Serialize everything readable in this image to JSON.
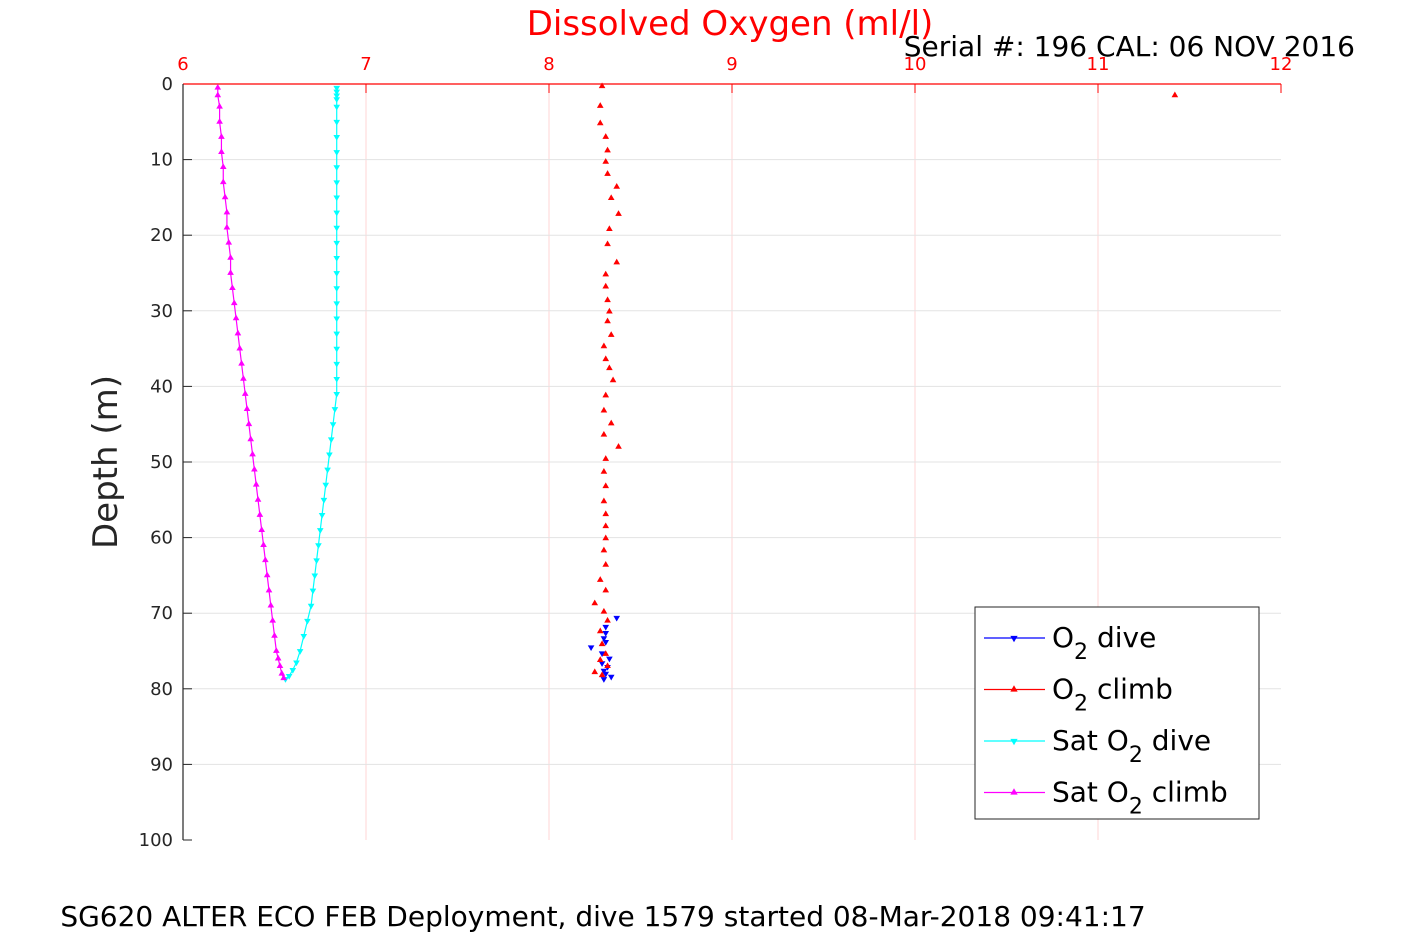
{
  "chart_data": {
    "type": "scatter",
    "title": "Dissolved Oxygen (ml/l)",
    "subtitle": "Serial #: 196  CAL: 06 NOV 2016",
    "xlabel": "",
    "ylabel": "Depth (m)",
    "caption": "SG620 ALTER ECO FEB Deployment, dive 1579 started 08-Mar-2018 09:41:17",
    "xlim": [
      6,
      12
    ],
    "ylim": [
      0,
      100
    ],
    "y_reversed": true,
    "x_axis_location": "top",
    "grid": true,
    "legend_position": "bottom-right",
    "x_ticks": [
      "6",
      "7",
      "8",
      "9",
      "10",
      "11",
      "12"
    ],
    "y_ticks": [
      "0",
      "10",
      "20",
      "30",
      "40",
      "50",
      "60",
      "70",
      "80",
      "90",
      "100"
    ],
    "series": [
      {
        "name": "O2 dive",
        "legend": {
          "pre": "O",
          "sub": "2",
          "post": " dive"
        },
        "color": "#0000ff",
        "marker": "triangle-down",
        "points": [
          [
            8.37,
            70.6
          ],
          [
            8.31,
            71.8
          ],
          [
            8.31,
            72.6
          ],
          [
            8.3,
            73.3
          ],
          [
            8.31,
            73.8
          ],
          [
            8.23,
            74.5
          ],
          [
            8.29,
            75.3
          ],
          [
            8.33,
            76.0
          ],
          [
            8.29,
            76.6
          ],
          [
            8.32,
            77.1
          ],
          [
            8.3,
            77.6
          ],
          [
            8.31,
            78.0
          ],
          [
            8.34,
            78.4
          ],
          [
            8.3,
            78.7
          ]
        ]
      },
      {
        "name": "O2 climb",
        "legend": {
          "pre": "O",
          "sub": "2",
          "post": " climb"
        },
        "color": "#ff0000",
        "marker": "triangle-up",
        "points": [
          [
            11.42,
            1.5
          ],
          [
            8.29,
            0.3
          ],
          [
            8.28,
            2.9
          ],
          [
            8.28,
            5.2
          ],
          [
            8.31,
            7.0
          ],
          [
            8.32,
            8.8
          ],
          [
            8.31,
            10.3
          ],
          [
            8.32,
            11.9
          ],
          [
            8.37,
            13.6
          ],
          [
            8.34,
            15.1
          ],
          [
            8.38,
            17.2
          ],
          [
            8.33,
            19.2
          ],
          [
            8.32,
            21.2
          ],
          [
            8.37,
            23.6
          ],
          [
            8.31,
            25.2
          ],
          [
            8.31,
            26.8
          ],
          [
            8.32,
            28.6
          ],
          [
            8.33,
            30.1
          ],
          [
            8.32,
            31.4
          ],
          [
            8.34,
            33.2
          ],
          [
            8.3,
            34.7
          ],
          [
            8.31,
            36.4
          ],
          [
            8.33,
            37.6
          ],
          [
            8.35,
            39.2
          ],
          [
            8.31,
            41.2
          ],
          [
            8.3,
            43.2
          ],
          [
            8.34,
            44.9
          ],
          [
            8.3,
            46.4
          ],
          [
            8.38,
            48.0
          ],
          [
            8.31,
            49.6
          ],
          [
            8.3,
            51.3
          ],
          [
            8.31,
            53.2
          ],
          [
            8.3,
            55.2
          ],
          [
            8.31,
            56.9
          ],
          [
            8.31,
            58.5
          ],
          [
            8.31,
            60.1
          ],
          [
            8.3,
            61.7
          ],
          [
            8.31,
            63.6
          ],
          [
            8.28,
            65.6
          ],
          [
            8.31,
            67.0
          ],
          [
            8.25,
            68.7
          ],
          [
            8.3,
            69.8
          ],
          [
            8.32,
            71.0
          ],
          [
            8.28,
            72.4
          ],
          [
            8.29,
            74.1
          ],
          [
            8.31,
            75.4
          ],
          [
            8.28,
            76.2
          ],
          [
            8.32,
            77.0
          ],
          [
            8.25,
            77.8
          ],
          [
            8.29,
            78.2
          ]
        ]
      },
      {
        "name": "Sat O2 dive",
        "legend": {
          "pre": "Sat O",
          "sub": "2",
          "post": " dive"
        },
        "color": "#00ffff",
        "marker": "triangle-down",
        "line": true,
        "points": [
          [
            6.84,
            0.5
          ],
          [
            6.84,
            1.0
          ],
          [
            6.84,
            1.5
          ],
          [
            6.84,
            2.0
          ],
          [
            6.84,
            3.0
          ],
          [
            6.84,
            5.0
          ],
          [
            6.84,
            7.0
          ],
          [
            6.84,
            9.0
          ],
          [
            6.84,
            11.0
          ],
          [
            6.84,
            13.0
          ],
          [
            6.84,
            15.0
          ],
          [
            6.84,
            17.0
          ],
          [
            6.84,
            19.0
          ],
          [
            6.84,
            21.0
          ],
          [
            6.84,
            23.0
          ],
          [
            6.84,
            25.0
          ],
          [
            6.84,
            27.0
          ],
          [
            6.84,
            29.0
          ],
          [
            6.84,
            31.0
          ],
          [
            6.84,
            33.0
          ],
          [
            6.84,
            35.0
          ],
          [
            6.84,
            37.0
          ],
          [
            6.84,
            39.0
          ],
          [
            6.84,
            41.0
          ],
          [
            6.83,
            43.0
          ],
          [
            6.82,
            45.0
          ],
          [
            6.81,
            47.0
          ],
          [
            6.8,
            49.0
          ],
          [
            6.79,
            51.0
          ],
          [
            6.78,
            53.0
          ],
          [
            6.77,
            55.0
          ],
          [
            6.76,
            57.0
          ],
          [
            6.75,
            59.0
          ],
          [
            6.74,
            61.0
          ],
          [
            6.73,
            63.0
          ],
          [
            6.72,
            65.0
          ],
          [
            6.71,
            67.0
          ],
          [
            6.7,
            69.0
          ],
          [
            6.68,
            71.0
          ],
          [
            6.66,
            73.0
          ],
          [
            6.64,
            75.0
          ],
          [
            6.62,
            76.5
          ],
          [
            6.6,
            77.5
          ],
          [
            6.58,
            78.3
          ],
          [
            6.56,
            78.7
          ]
        ]
      },
      {
        "name": "Sat O2 climb",
        "legend": {
          "pre": "Sat O",
          "sub": "2",
          "post": " climb"
        },
        "color": "#ff00ff",
        "marker": "triangle-up",
        "line": true,
        "points": [
          [
            6.55,
            78.6
          ],
          [
            6.54,
            78.0
          ],
          [
            6.53,
            77.0
          ],
          [
            6.52,
            76.0
          ],
          [
            6.51,
            75.0
          ],
          [
            6.5,
            73.0
          ],
          [
            6.49,
            71.0
          ],
          [
            6.48,
            69.0
          ],
          [
            6.47,
            67.0
          ],
          [
            6.46,
            65.0
          ],
          [
            6.45,
            63.0
          ],
          [
            6.44,
            61.0
          ],
          [
            6.43,
            59.0
          ],
          [
            6.42,
            57.0
          ],
          [
            6.41,
            55.0
          ],
          [
            6.4,
            53.0
          ],
          [
            6.39,
            51.0
          ],
          [
            6.38,
            49.0
          ],
          [
            6.37,
            47.0
          ],
          [
            6.36,
            45.0
          ],
          [
            6.35,
            43.0
          ],
          [
            6.34,
            41.0
          ],
          [
            6.33,
            39.0
          ],
          [
            6.32,
            37.0
          ],
          [
            6.31,
            35.0
          ],
          [
            6.3,
            33.0
          ],
          [
            6.29,
            31.0
          ],
          [
            6.28,
            29.0
          ],
          [
            6.27,
            27.0
          ],
          [
            6.26,
            25.0
          ],
          [
            6.26,
            23.0
          ],
          [
            6.25,
            21.0
          ],
          [
            6.24,
            19.0
          ],
          [
            6.24,
            17.0
          ],
          [
            6.23,
            15.0
          ],
          [
            6.22,
            13.0
          ],
          [
            6.22,
            11.0
          ],
          [
            6.21,
            9.0
          ],
          [
            6.21,
            7.0
          ],
          [
            6.2,
            5.0
          ],
          [
            6.2,
            3.0
          ],
          [
            6.19,
            1.5
          ],
          [
            6.19,
            0.5
          ]
        ]
      }
    ]
  }
}
